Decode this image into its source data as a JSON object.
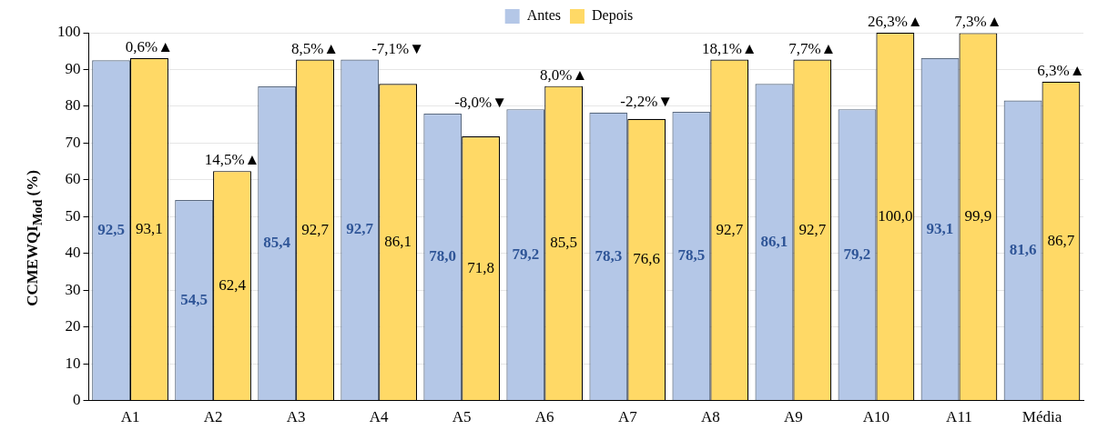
{
  "chart_data": {
    "type": "bar",
    "ylabel": "CCMEWQI$_{Mod}$ (%)",
    "categories": [
      "A1",
      "A2",
      "A3",
      "A4",
      "A5",
      "A6",
      "A7",
      "A8",
      "A9",
      "A10",
      "A11",
      "Média"
    ],
    "series": [
      {
        "name": "Antes",
        "color": "#b4c7e7",
        "values": [
          92.5,
          54.5,
          85.4,
          92.7,
          78.0,
          79.2,
          78.3,
          78.5,
          86.1,
          79.2,
          93.1,
          81.6
        ],
        "value_labels": [
          "92,5",
          "54,5",
          "85,4",
          "92,7",
          "78,0",
          "79,2",
          "78,3",
          "78,5",
          "86,1",
          "79,2",
          "93,1",
          "81,6"
        ]
      },
      {
        "name": "Depois",
        "color": "#ffd966",
        "values": [
          93.1,
          62.4,
          92.7,
          86.1,
          71.8,
          85.5,
          76.6,
          92.7,
          92.7,
          100.0,
          99.9,
          86.7
        ],
        "value_labels": [
          "93,1",
          "62,4",
          "92,7",
          "86,1",
          "71,8",
          "85,5",
          "76,6",
          "92,7",
          "92,7",
          "100,0",
          "99,9",
          "86,7"
        ]
      }
    ],
    "ylim": [
      0,
      100
    ],
    "yticks": [
      0,
      10,
      20,
      30,
      40,
      50,
      60,
      70,
      80,
      90,
      100
    ],
    "grid": "y",
    "legend": "top",
    "annotations": [
      {
        "text": "0,6%▲",
        "x": "A1",
        "y": 93.1
      },
      {
        "text": "14,5%▲",
        "x": "A2",
        "y": 62.4
      },
      {
        "text": "8,5%▲",
        "x": "A3",
        "y": 92.7
      },
      {
        "text": "-7,1%▼",
        "x": "A4",
        "y": 86.1
      },
      {
        "text": "-8,0%▼",
        "x": "A5",
        "y": 71.8
      },
      {
        "text": "8,0%▲",
        "x": "A6",
        "y": 85.5
      },
      {
        "text": "-2,2%▼",
        "x": "A7",
        "y": 76.6
      },
      {
        "text": "18,1%▲",
        "x": "A8",
        "y": 92.7
      },
      {
        "text": "7,7%▲",
        "x": "A9",
        "y": 92.7
      },
      {
        "text": "26,3%▲",
        "x": "A10",
        "y": 100.0
      },
      {
        "text": "7,3%▲",
        "x": "A11",
        "y": 99.9
      },
      {
        "text": "6,3%▲",
        "x": "Média",
        "y": 86.7
      }
    ]
  }
}
